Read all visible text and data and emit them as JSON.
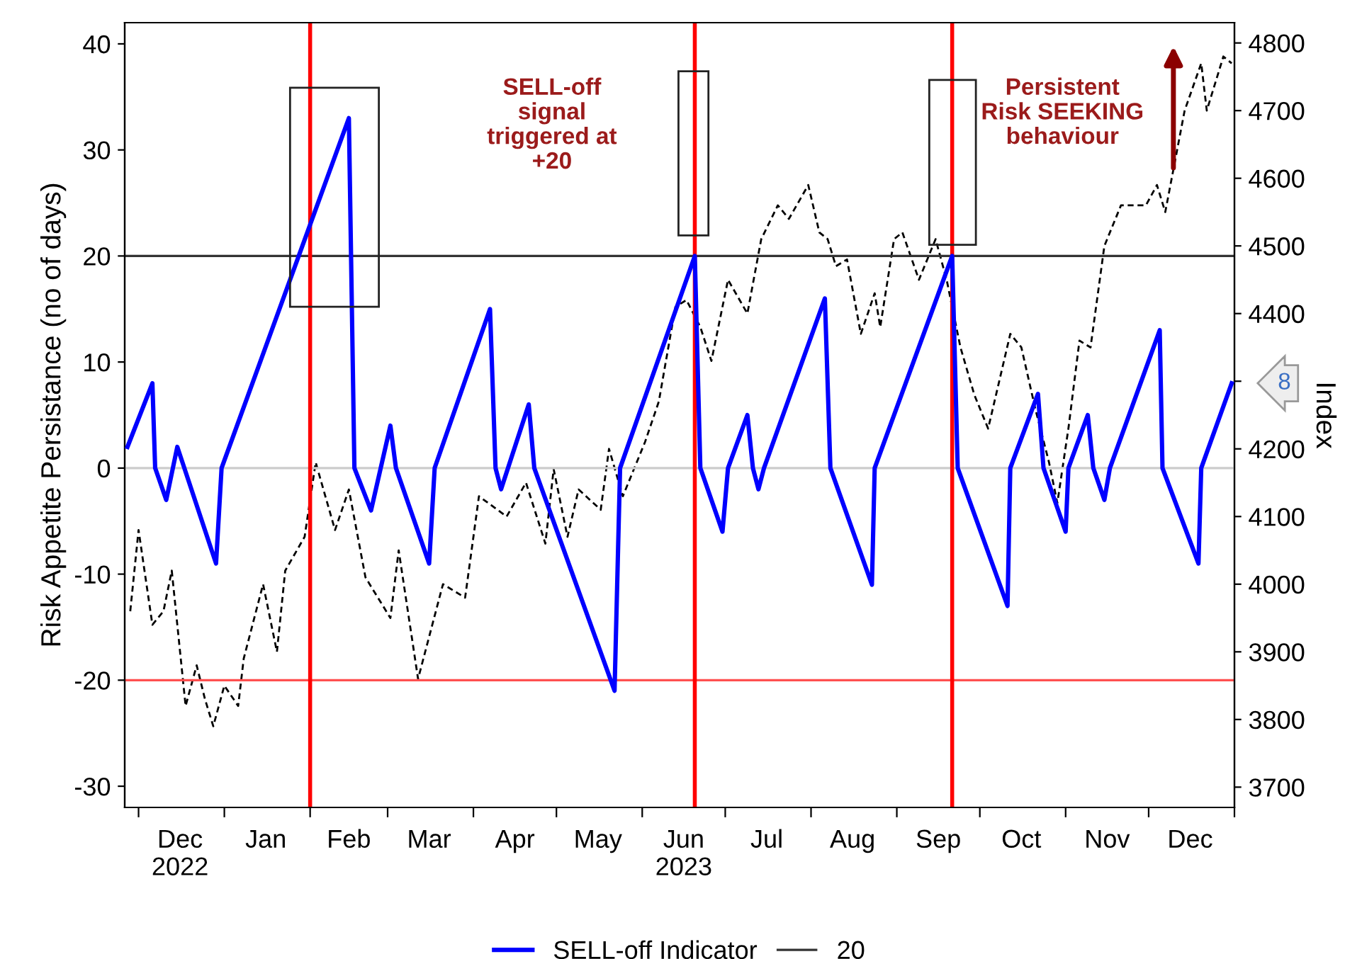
{
  "chart_data": {
    "type": "line",
    "ylabel": "Risk Appetite Persistance (no of days)",
    "y2label": "Index",
    "xlim": [
      "2022-11-26",
      "2024-01-01"
    ],
    "xticks": [
      {
        "value": "2022-12-01",
        "label": null
      },
      {
        "value": "2022-12-16",
        "label": "Dec\n2022"
      },
      {
        "value": "2023-01-01",
        "label": null
      },
      {
        "value": "2023-01-16",
        "label": "Jan"
      },
      {
        "value": "2023-02-01",
        "label": null
      },
      {
        "value": "2023-02-15",
        "label": "Feb"
      },
      {
        "value": "2023-03-01",
        "label": null
      },
      {
        "value": "2023-03-16",
        "label": "Mar"
      },
      {
        "value": "2023-04-01",
        "label": null
      },
      {
        "value": "2023-04-16",
        "label": "Apr"
      },
      {
        "value": "2023-05-01",
        "label": null
      },
      {
        "value": "2023-05-16",
        "label": "May"
      },
      {
        "value": "2023-06-01",
        "label": null
      },
      {
        "value": "2023-06-16",
        "label": "Jun\n2023"
      },
      {
        "value": "2023-07-01",
        "label": null
      },
      {
        "value": "2023-07-16",
        "label": "Jul"
      },
      {
        "value": "2023-08-01",
        "label": null
      },
      {
        "value": "2023-08-16",
        "label": "Aug"
      },
      {
        "value": "2023-09-01",
        "label": null
      },
      {
        "value": "2023-09-16",
        "label": "Sep"
      },
      {
        "value": "2023-10-01",
        "label": null
      },
      {
        "value": "2023-10-16",
        "label": "Oct"
      },
      {
        "value": "2023-11-01",
        "label": null
      },
      {
        "value": "2023-11-16",
        "label": "Nov"
      },
      {
        "value": "2023-12-01",
        "label": null
      },
      {
        "value": "2023-12-16",
        "label": "Dec"
      },
      {
        "value": "2024-01-01",
        "label": null
      }
    ],
    "ylim": [
      -32,
      42
    ],
    "yticks": [
      -30,
      -20,
      -10,
      0,
      10,
      20,
      30,
      40
    ],
    "y2lim": [
      3670,
      4830
    ],
    "y2ticks": [
      3700,
      3800,
      3900,
      4000,
      4100,
      4200,
      {
        "value": 4300,
        "label": null
      },
      4400,
      4500,
      4600,
      4700,
      4800
    ],
    "grid": false,
    "legend": "bottom",
    "marker": "none",
    "series": [
      {
        "color": "#000000",
        "axis": "y2",
        "line_style": "dashed",
        "x": [
          "2022-11-28",
          "2022-12-01",
          "2022-12-06",
          "2022-12-10",
          "2022-12-13",
          "2022-12-18",
          "2022-12-22",
          "2022-12-25",
          "2022-12-28",
          "2023-01-01",
          "2023-01-06",
          "2023-01-08",
          "2023-01-15",
          "2023-01-20",
          "2023-01-23",
          "2023-01-30",
          "2023-02-03",
          "2023-02-10",
          "2023-02-15",
          "2023-02-21",
          "2023-03-02",
          "2023-03-05",
          "2023-03-12",
          "2023-03-21",
          "2023-03-29",
          "2023-04-03",
          "2023-04-13",
          "2023-04-20",
          "2023-04-27",
          "2023-04-30",
          "2023-05-05",
          "2023-05-09",
          "2023-05-17",
          "2023-05-20",
          "2023-05-25",
          "2023-06-02",
          "2023-06-07",
          "2023-06-13",
          "2023-06-17",
          "2023-06-22",
          "2023-06-26",
          "2023-07-02",
          "2023-07-09",
          "2023-07-14",
          "2023-07-20",
          "2023-07-24",
          "2023-07-31",
          "2023-08-04",
          "2023-08-07",
          "2023-08-10",
          "2023-08-14",
          "2023-08-19",
          "2023-08-24",
          "2023-08-26",
          "2023-08-31",
          "2023-09-03",
          "2023-09-09",
          "2023-09-15",
          "2023-09-19",
          "2023-09-24",
          "2023-09-29",
          "2023-10-04",
          "2023-10-12",
          "2023-10-16",
          "2023-10-21",
          "2023-10-26",
          "2023-10-29",
          "2023-11-02",
          "2023-11-06",
          "2023-11-10",
          "2023-11-15",
          "2023-11-21",
          "2023-11-30",
          "2023-12-04",
          "2023-12-07",
          "2023-12-14",
          "2023-12-20",
          "2023-12-22",
          "2023-12-28",
          "2023-12-31"
        ],
        "values": [
          3960,
          4080,
          3940,
          3960,
          4020,
          3820,
          3880,
          3830,
          3790,
          3850,
          3820,
          3890,
          4000,
          3900,
          4020,
          4070,
          4180,
          4080,
          4140,
          4010,
          3950,
          4050,
          3860,
          4000,
          3980,
          4130,
          4100,
          4150,
          4060,
          4170,
          4070,
          4140,
          4110,
          4200,
          4130,
          4210,
          4270,
          4410,
          4420,
          4380,
          4330,
          4450,
          4400,
          4510,
          4560,
          4540,
          4590,
          4520,
          4510,
          4470,
          4480,
          4370,
          4430,
          4380,
          4510,
          4520,
          4450,
          4510,
          4450,
          4350,
          4280,
          4230,
          4370,
          4350,
          4260,
          4180,
          4120,
          4230,
          4360,
          4350,
          4500,
          4560,
          4560,
          4590,
          4550,
          4700,
          4770,
          4700,
          4780,
          4770
        ]
      },
      {
        "name": "SELL-off Indicator",
        "color": "#0000ff",
        "line_style": "solid",
        "x": [
          "2022-11-27",
          "2022-12-06",
          "2022-12-07",
          "2022-12-11",
          "2022-12-15",
          "2022-12-29",
          "2022-12-31",
          "2023-02-15",
          "2023-02-17",
          "2023-02-23",
          "2023-03-02",
          "2023-03-04",
          "2023-03-16",
          "2023-03-18",
          "2023-04-07",
          "2023-04-09",
          "2023-04-11",
          "2023-04-21",
          "2023-04-23",
          "2023-05-22",
          "2023-05-24",
          "2023-06-20",
          "2023-06-22",
          "2023-06-30",
          "2023-07-02",
          "2023-07-09",
          "2023-07-11",
          "2023-07-13",
          "2023-07-15",
          "2023-08-06",
          "2023-08-08",
          "2023-08-23",
          "2023-08-24",
          "2023-09-21",
          "2023-09-23",
          "2023-10-11",
          "2023-10-12",
          "2023-10-22",
          "2023-10-24",
          "2023-11-01",
          "2023-11-02",
          "2023-11-09",
          "2023-11-11",
          "2023-11-15",
          "2023-11-17",
          "2023-12-05",
          "2023-12-06",
          "2023-12-19",
          "2023-12-20",
          "2023-12-31"
        ],
        "values": [
          2,
          8,
          0,
          -3,
          2,
          -9,
          0,
          33,
          0,
          -4,
          4,
          0,
          -9,
          0,
          15,
          0,
          -2,
          6,
          0,
          -21,
          0,
          20,
          0,
          -6,
          0,
          5,
          0,
          -2,
          0,
          16,
          0,
          -11,
          0,
          20,
          0,
          -13,
          0,
          7,
          0,
          -6,
          0,
          5,
          0,
          -3,
          0,
          13,
          0,
          -9,
          0,
          8
        ]
      }
    ],
    "ref_lines": [
      {
        "axis": "y",
        "value": 20,
        "label": "20",
        "color": "#333333",
        "line_style": "solid"
      },
      {
        "axis": "y",
        "value": 0,
        "label": null,
        "color": "#cccccc",
        "line_style": "solid"
      },
      {
        "axis": "y",
        "value": -20,
        "label": null,
        "color": "#ff5050",
        "line_style": "solid"
      },
      {
        "axis": "x",
        "value": "2023-02-01",
        "label": null,
        "color": "#ff0000",
        "line_style": "solid"
      },
      {
        "axis": "x",
        "value": "2023-06-20",
        "label": null,
        "color": "#ff0000",
        "line_style": "solid"
      },
      {
        "axis": "x",
        "value": "2023-09-21",
        "label": null,
        "color": "#ff0000",
        "line_style": "solid"
      }
    ],
    "annotations": [
      "SELL-off\nsignal\ntriggered at\n+20",
      "Persistent\nRisk SEEKING\nbehaviour",
      {
        "text": "8",
        "x": "2023-12-31",
        "y": 8
      }
    ]
  }
}
